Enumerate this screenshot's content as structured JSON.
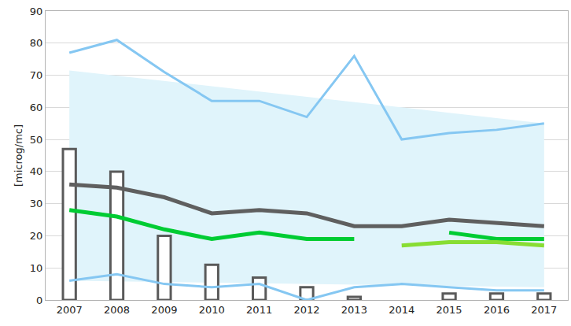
{
  "chart_data": {
    "type": "line",
    "y_label": "[microg/mc]",
    "categories": [
      "2007",
      "2008",
      "2009",
      "2010",
      "2011",
      "2012",
      "2013",
      "2014",
      "2015",
      "2016",
      "2017"
    ],
    "ylim": [
      0,
      90
    ],
    "yticks": [
      0,
      10,
      20,
      30,
      40,
      50,
      60,
      70,
      80,
      90
    ],
    "grid": true,
    "series": [
      {
        "type": "band",
        "color": "#e0f4fb",
        "lower": [
          6,
          5.8,
          5.6,
          5.4,
          5.2,
          5,
          4.8,
          4.6,
          4.4,
          4.2,
          4
        ],
        "upper": [
          71.5,
          69.9,
          68.2,
          66.6,
          64.9,
          63.3,
          61.6,
          60,
          58.3,
          56.7,
          55
        ]
      },
      {
        "type": "bar",
        "color": "#5a5a5a",
        "marker": "hollow",
        "values": [
          47,
          40,
          20,
          11,
          7,
          4,
          1,
          null,
          2,
          2,
          2
        ]
      },
      {
        "type": "line",
        "color": "#85c7f2",
        "values": [
          77,
          81,
          71,
          62,
          62,
          57,
          76,
          50,
          52,
          53,
          55
        ]
      },
      {
        "type": "line",
        "color": "#85c7f2",
        "values": [
          6,
          8,
          5,
          4,
          5,
          0,
          4,
          5,
          4,
          3,
          3
        ]
      },
      {
        "type": "line",
        "color": "#5f5f5f",
        "values": [
          36,
          35,
          32,
          27,
          28,
          27,
          23,
          23,
          25,
          24,
          23
        ]
      },
      {
        "type": "line",
        "color": "#00cc33",
        "values": [
          28,
          26,
          22,
          19,
          21,
          19,
          19,
          null,
          21,
          19,
          19
        ]
      },
      {
        "type": "line",
        "color": "#88dd33",
        "values": [
          null,
          null,
          null,
          null,
          null,
          null,
          null,
          17,
          18,
          18,
          17
        ]
      }
    ]
  }
}
